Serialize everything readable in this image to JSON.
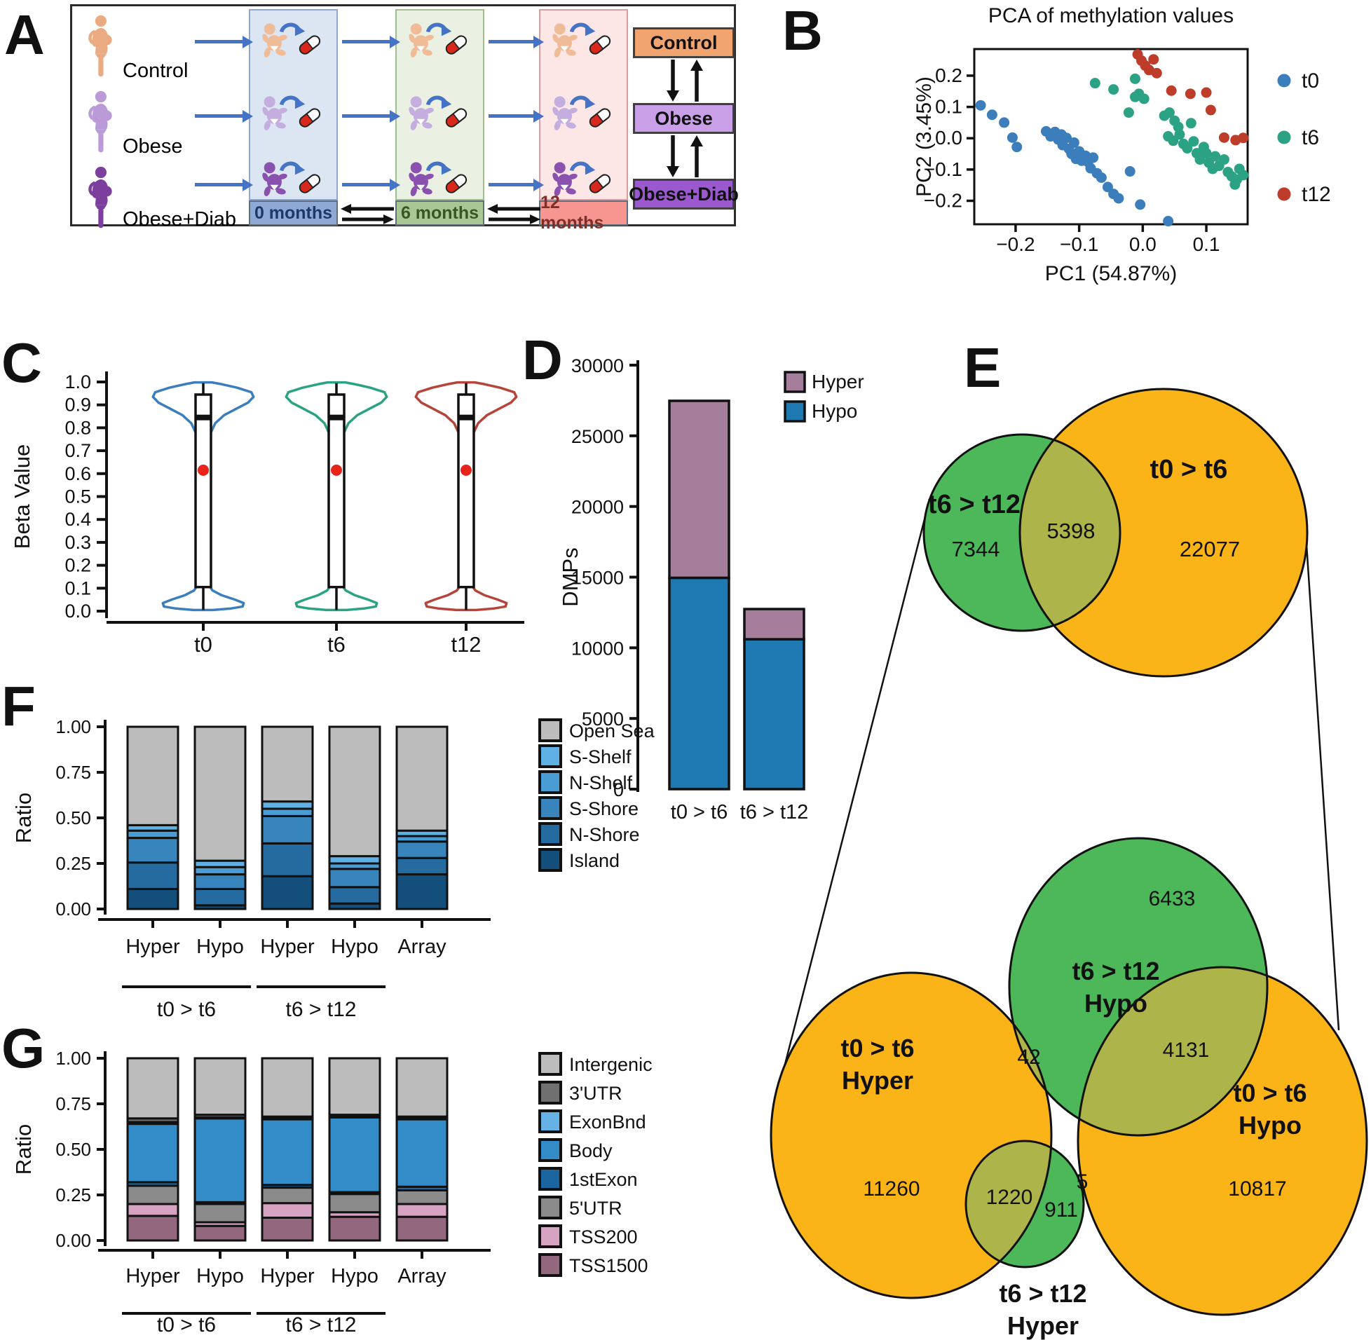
{
  "panel_letters": {
    "a": "A",
    "b": "B",
    "c": "C",
    "d": "D",
    "e": "E",
    "f": "F",
    "g": "G"
  },
  "panel_a": {
    "groups": [
      {
        "label": "Control",
        "woman_color": "#EBAB82",
        "baby_color": "#F0BC97",
        "box_bg": "#F0A470"
      },
      {
        "label": "Obese",
        "woman_color": "#BA9BD8",
        "baby_color": "#C4AEE0",
        "box_bg": "#C9A0E8"
      },
      {
        "label": "Obese+Diab",
        "woman_color": "#7C3F9E",
        "baby_color": "#8A51AE",
        "box_bg": "#9B59D0"
      }
    ],
    "timepoints": [
      {
        "label": "0 months",
        "column_bg": "#DCE5F2",
        "column_border": "#8FA7D2",
        "box_bg": "#8FA9D6",
        "box_text": "#1F3864"
      },
      {
        "label": "6 months",
        "column_bg": "#EAF1E3",
        "column_border": "#A3BE8E",
        "box_bg": "#A9C795",
        "box_text": "#375623"
      },
      {
        "label": "12 months",
        "column_bg": "#FCE7E6",
        "column_border": "#DE9D9D",
        "box_bg": "#F79591",
        "box_text": "#7E2F28"
      }
    ],
    "arrow_color": "#4573C6",
    "pill_red": "#D8281C"
  },
  "chart_data": [
    {
      "id": "pca",
      "type": "scatter",
      "title": "PCA of methylation values",
      "xlabel": "PC1 (54.87%)",
      "ylabel": "PC2 (3.45%)",
      "xlim": [
        -0.265,
        0.165
      ],
      "ylim": [
        -0.275,
        0.285
      ],
      "xticks": [
        -0.2,
        -0.1,
        0.0,
        0.1
      ],
      "yticks": [
        -0.2,
        -0.1,
        0.0,
        0.1,
        0.2
      ],
      "grid": false,
      "legend_position": "right",
      "series": [
        {
          "name": "t0",
          "color": "#3B7EBB",
          "points": [
            [
              -0.255,
              0.105
            ],
            [
              -0.237,
              0.075
            ],
            [
              -0.218,
              0.05
            ],
            [
              -0.205,
              0.002
            ],
            [
              -0.198,
              -0.028
            ],
            [
              -0.152,
              0.022
            ],
            [
              -0.145,
              0.006
            ],
            [
              -0.138,
              0.02
            ],
            [
              -0.133,
              -0.004
            ],
            [
              -0.128,
              0.012
            ],
            [
              -0.126,
              -0.022
            ],
            [
              -0.12,
              0.001
            ],
            [
              -0.116,
              -0.034
            ],
            [
              -0.112,
              -0.05
            ],
            [
              -0.108,
              -0.014
            ],
            [
              -0.105,
              -0.066
            ],
            [
              -0.1,
              -0.042
            ],
            [
              -0.096,
              -0.072
            ],
            [
              -0.09,
              -0.056
            ],
            [
              -0.086,
              -0.076
            ],
            [
              -0.082,
              -0.096
            ],
            [
              -0.078,
              -0.062
            ],
            [
              -0.072,
              -0.112
            ],
            [
              -0.065,
              -0.126
            ],
            [
              -0.055,
              -0.156
            ],
            [
              -0.046,
              -0.178
            ],
            [
              -0.038,
              -0.192
            ],
            [
              -0.02,
              -0.106
            ],
            [
              -0.004,
              -0.212
            ],
            [
              0.04,
              -0.265
            ]
          ]
        },
        {
          "name": "t6",
          "color": "#2BA283",
          "points": [
            [
              -0.075,
              0.176
            ],
            [
              -0.046,
              0.156
            ],
            [
              -0.012,
              0.19
            ],
            [
              -0.006,
              0.142
            ],
            [
              0.002,
              0.126
            ],
            [
              -0.012,
              0.132
            ],
            [
              -0.022,
              0.082
            ],
            [
              0.034,
              0.072
            ],
            [
              0.042,
              0.082
            ],
            [
              0.05,
              0.056
            ],
            [
              0.056,
              0.036
            ],
            [
              0.04,
              0.006
            ],
            [
              0.048,
              -0.008
            ],
            [
              0.058,
              0.012
            ],
            [
              0.064,
              -0.018
            ],
            [
              0.07,
              -0.032
            ],
            [
              0.076,
              0.048
            ],
            [
              0.08,
              -0.01
            ],
            [
              0.085,
              -0.048
            ],
            [
              0.09,
              -0.068
            ],
            [
              0.096,
              -0.028
            ],
            [
              0.1,
              -0.048
            ],
            [
              0.104,
              -0.078
            ],
            [
              0.11,
              -0.098
            ],
            [
              0.114,
              -0.058
            ],
            [
              0.12,
              -0.088
            ],
            [
              0.128,
              -0.068
            ],
            [
              0.134,
              -0.108
            ],
            [
              0.14,
              -0.122
            ],
            [
              0.148,
              -0.132
            ],
            [
              0.152,
              -0.098
            ],
            [
              0.158,
              -0.118
            ],
            [
              0.145,
              -0.148
            ]
          ]
        },
        {
          "name": "t12",
          "color": "#BE3D2A",
          "points": [
            [
              -0.008,
              0.268
            ],
            [
              -0.002,
              0.248
            ],
            [
              0.004,
              0.232
            ],
            [
              0.01,
              0.218
            ],
            [
              0.017,
              0.252
            ],
            [
              0.022,
              0.208
            ],
            [
              0.045,
              0.152
            ],
            [
              0.075,
              0.142
            ],
            [
              0.1,
              0.146
            ],
            [
              0.107,
              0.09
            ],
            [
              0.128,
              0.002
            ],
            [
              0.146,
              -0.006
            ],
            [
              0.158,
              0.001
            ]
          ]
        }
      ]
    },
    {
      "id": "beta_violin",
      "type": "violin",
      "ylabel": "Beta Value",
      "yticks": [
        0.0,
        0.1,
        0.2,
        0.3,
        0.4,
        0.5,
        0.6,
        0.7,
        0.8,
        0.9,
        1.0
      ],
      "categories": [
        "t0",
        "t6",
        "t12"
      ],
      "colors": [
        "#3B7EBB",
        "#2BA283",
        "#B5453A"
      ],
      "box": {
        "whisker_low": 0.005,
        "q1": 0.105,
        "median": 0.845,
        "mean": 0.615,
        "q3": 0.945,
        "whisker_high": 0.995
      },
      "mean_dot_color": "#E8231A",
      "density_profile": [
        [
          0.005,
          0.18
        ],
        [
          0.012,
          0.52
        ],
        [
          0.02,
          0.72
        ],
        [
          0.035,
          0.74
        ],
        [
          0.05,
          0.58
        ],
        [
          0.07,
          0.33
        ],
        [
          0.09,
          0.17
        ],
        [
          0.11,
          0.11
        ],
        [
          0.15,
          0.085
        ],
        [
          0.25,
          0.07
        ],
        [
          0.4,
          0.065
        ],
        [
          0.55,
          0.07
        ],
        [
          0.65,
          0.08
        ],
        [
          0.72,
          0.1
        ],
        [
          0.78,
          0.14
        ],
        [
          0.82,
          0.22
        ],
        [
          0.855,
          0.38
        ],
        [
          0.885,
          0.62
        ],
        [
          0.91,
          0.82
        ],
        [
          0.935,
          0.92
        ],
        [
          0.955,
          0.88
        ],
        [
          0.975,
          0.62
        ],
        [
          0.99,
          0.34
        ],
        [
          0.998,
          0.16
        ]
      ]
    },
    {
      "id": "dmps",
      "type": "bar",
      "stacked": true,
      "ylabel": "DMPs",
      "ylim": [
        0,
        30000
      ],
      "yticks": [
        0,
        5000,
        10000,
        15000,
        20000,
        25000,
        30000
      ],
      "categories": [
        "t0 > t6",
        "t6 > t12"
      ],
      "series": [
        {
          "name": "Hypo",
          "color": "#1E78B2",
          "values": [
            14953,
            10606
          ]
        },
        {
          "name": "Hyper",
          "color": "#A57E9B",
          "values": [
            12522,
            2136
          ]
        }
      ],
      "legend": [
        "Hyper",
        "Hypo"
      ]
    },
    {
      "id": "venn_top",
      "type": "venn",
      "sets": [
        {
          "id": "t6t12",
          "label": "t6 > t12",
          "count": 7344,
          "color": "#4CB85A"
        },
        {
          "id": "t0t6",
          "label": "t0 > t6",
          "count": 22077,
          "color": "#FBB417"
        }
      ],
      "overlaps": [
        {
          "between": [
            "t6t12",
            "t0t6"
          ],
          "count": 5398
        }
      ],
      "overlap_color": "#ADB44A"
    },
    {
      "id": "venn_bottom",
      "type": "venn",
      "sets": [
        {
          "id": "hyper06",
          "label": "t0 > t6",
          "sublabel": "Hyper",
          "count": 11260,
          "color": "#FBB417"
        },
        {
          "id": "hypo612",
          "label": "t6 > t12",
          "sublabel": "Hypo",
          "count": 6433,
          "color": "#4CB85A"
        },
        {
          "id": "hypo06",
          "label": "t0 > t6",
          "sublabel": "Hypo",
          "count": 10817,
          "color": "#FBB417"
        },
        {
          "id": "hyper612",
          "label": "t6 > t12",
          "sublabel": "Hyper",
          "count": 911,
          "color": "#4CB85A"
        }
      ],
      "overlaps": [
        {
          "between": [
            "hyper06",
            "hypo612"
          ],
          "count": 42
        },
        {
          "between": [
            "hypo612",
            "hypo06"
          ],
          "count": 4131
        },
        {
          "between": [
            "hyper06",
            "hyper612"
          ],
          "count": 1220
        },
        {
          "between": [
            "hyper612",
            "hypo06"
          ],
          "count": 5
        }
      ],
      "overlap_color": "#ADB44A"
    },
    {
      "id": "cpg_context",
      "type": "bar",
      "stacked": true,
      "ylabel": "Ratio",
      "ylim": [
        0,
        1
      ],
      "yticks": [
        0.0,
        0.25,
        0.5,
        0.75,
        1.0
      ],
      "categories": [
        "Hyper",
        "Hypo",
        "Hyper",
        "Hypo",
        "Array"
      ],
      "groups": [
        {
          "label": "t0 > t6",
          "from": 0,
          "to": 1
        },
        {
          "label": "t6 > t12",
          "from": 2,
          "to": 3
        }
      ],
      "series": [
        {
          "name": "Island",
          "color": "#134F7A",
          "values": [
            0.11,
            0.02,
            0.18,
            0.03,
            0.19
          ]
        },
        {
          "name": "N-Shore",
          "color": "#266B9F",
          "values": [
            0.145,
            0.09,
            0.18,
            0.09,
            0.09
          ]
        },
        {
          "name": "S-Shore",
          "color": "#3884BD",
          "values": [
            0.135,
            0.08,
            0.15,
            0.1,
            0.09
          ]
        },
        {
          "name": "N-Shelf",
          "color": "#4A9CD4",
          "values": [
            0.04,
            0.04,
            0.04,
            0.03,
            0.03
          ]
        },
        {
          "name": "S-Shelf",
          "color": "#5FB0E4",
          "values": [
            0.03,
            0.035,
            0.04,
            0.04,
            0.03
          ]
        },
        {
          "name": "Open Sea",
          "color": "#BCBCBC",
          "values": [
            0.54,
            0.735,
            0.41,
            0.71,
            0.57
          ]
        }
      ],
      "legend": [
        "Open Sea",
        "S-Shelf",
        "N-Shelf",
        "S-Shore",
        "N-Shore",
        "Island"
      ]
    },
    {
      "id": "gene_feature",
      "type": "bar",
      "stacked": true,
      "ylabel": "Ratio",
      "ylim": [
        0,
        1
      ],
      "yticks": [
        0.0,
        0.25,
        0.5,
        0.75,
        1.0
      ],
      "categories": [
        "Hyper",
        "Hypo",
        "Hyper",
        "Hypo",
        "Array"
      ],
      "groups": [
        {
          "label": "t0 > t6",
          "from": 0,
          "to": 1
        },
        {
          "label": "t6 > t12",
          "from": 2,
          "to": 3
        }
      ],
      "series": [
        {
          "name": "TSS1500",
          "color": "#93687E",
          "values": [
            0.135,
            0.08,
            0.125,
            0.13,
            0.13
          ]
        },
        {
          "name": "TSS200",
          "color": "#D6A3C3",
          "values": [
            0.065,
            0.02,
            0.08,
            0.025,
            0.07
          ]
        },
        {
          "name": "5'UTR",
          "color": "#8B8B8B",
          "values": [
            0.1,
            0.1,
            0.085,
            0.1,
            0.075
          ]
        },
        {
          "name": "1stExon",
          "color": "#1B66A0",
          "values": [
            0.02,
            0.01,
            0.015,
            0.01,
            0.02
          ]
        },
        {
          "name": "Body",
          "color": "#338BC7",
          "values": [
            0.32,
            0.46,
            0.36,
            0.41,
            0.37
          ]
        },
        {
          "name": "ExonBnd",
          "color": "#66B2E4",
          "values": [
            0.01,
            0.005,
            0.005,
            0.005,
            0.005
          ]
        },
        {
          "name": "3'UTR",
          "color": "#707070",
          "values": [
            0.02,
            0.015,
            0.01,
            0.01,
            0.01
          ]
        },
        {
          "name": "Intergenic",
          "color": "#BCBCBC",
          "values": [
            0.33,
            0.31,
            0.32,
            0.31,
            0.32
          ]
        }
      ],
      "legend": [
        "Intergenic",
        "3'UTR",
        "ExonBnd",
        "Body",
        "1stExon",
        "5'UTR",
        "TSS200",
        "TSS1500"
      ]
    }
  ]
}
